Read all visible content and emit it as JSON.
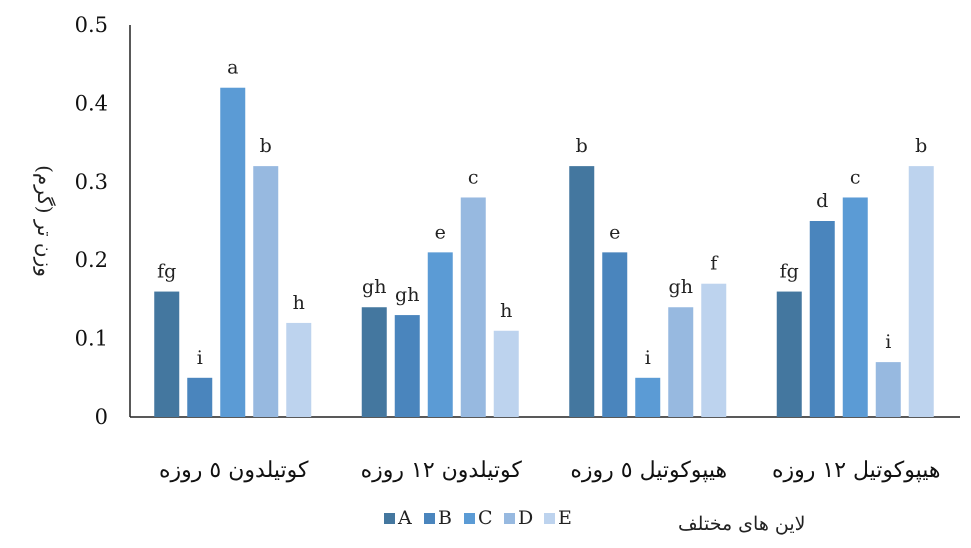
{
  "chart_data": {
    "type": "bar",
    "categories": [
      "کوتیلدون ٥ روزه",
      "کوتیلدون ١٢ روزه",
      "هیپوکوتیل ٥ روزه",
      "هیپوکوتیل ١٢ روزه"
    ],
    "series": [
      {
        "name": "A",
        "color": "#44779f",
        "values": [
          0.16,
          0.14,
          0.32,
          0.16
        ],
        "labels": [
          "fg",
          "gh",
          "b",
          "fg"
        ]
      },
      {
        "name": "B",
        "color": "#4a85bd",
        "values": [
          0.05,
          0.13,
          0.21,
          0.25
        ],
        "labels": [
          "i",
          "gh",
          "e",
          "d"
        ]
      },
      {
        "name": "C",
        "color": "#5b9bd5",
        "values": [
          0.42,
          0.21,
          0.05,
          0.28
        ],
        "labels": [
          "a",
          "e",
          "i",
          "c"
        ]
      },
      {
        "name": "D",
        "color": "#97b9e0",
        "values": [
          0.32,
          0.28,
          0.14,
          0.07
        ],
        "labels": [
          "b",
          "c",
          "gh",
          "i"
        ]
      },
      {
        "name": "E",
        "color": "#bdd3ee",
        "values": [
          0.12,
          0.11,
          0.17,
          0.32
        ],
        "labels": [
          "h",
          "h",
          "f",
          "b"
        ]
      }
    ],
    "ylabel": "وزن تر (گرم)",
    "legend_title": "لاین های مختلف",
    "ylim": [
      0,
      0.5
    ],
    "yticks": [
      "0",
      "0.1",
      "0.2",
      "0.3",
      "0.4",
      "0.5"
    ],
    "grid": false,
    "legend_position": "bottom"
  }
}
